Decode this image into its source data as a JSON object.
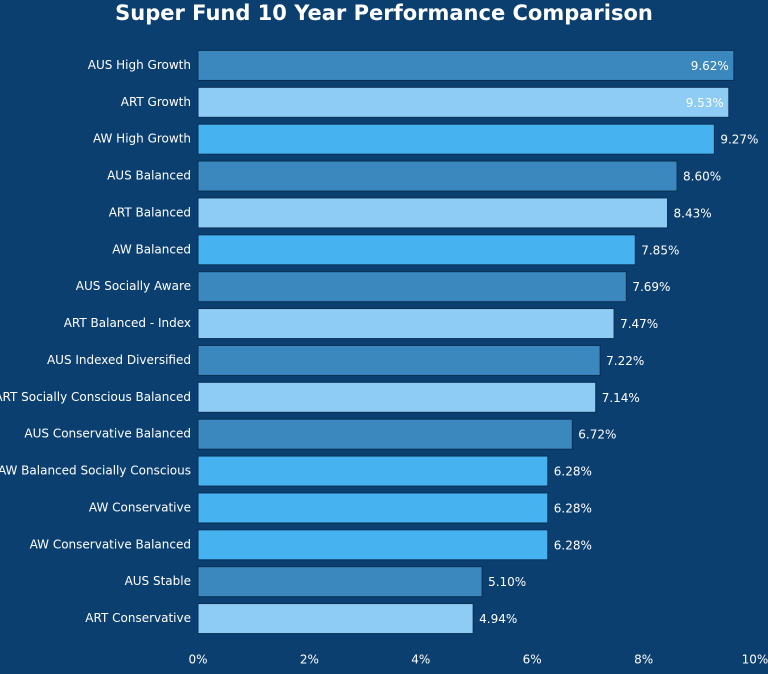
{
  "chart_data": {
    "type": "hbar",
    "title": "Super Fund 10 Year Performance Comparison",
    "categories": [
      "AUS High Growth",
      "ART Growth",
      "AW High Growth",
      "AUS Balanced",
      "ART Balanced",
      "AW Balanced",
      "AUS Socially Aware",
      "ART Balanced - Index",
      "AUS Indexed Diversified",
      "ART Socially Conscious Balanced",
      "AUS Conservative Balanced",
      "AW Balanced Socially Conscious",
      "AW Conservative",
      "AW Conservative Balanced",
      "AUS Stable",
      "ART Conservative"
    ],
    "values": [
      9.62,
      9.53,
      9.27,
      8.6,
      8.43,
      7.85,
      7.69,
      7.47,
      7.22,
      7.14,
      6.72,
      6.28,
      6.28,
      6.28,
      5.1,
      4.94
    ],
    "value_labels": [
      "9.62%",
      "9.53%",
      "9.27%",
      "8.60%",
      "8.43%",
      "7.85%",
      "7.69%",
      "7.47%",
      "7.22%",
      "7.14%",
      "6.72%",
      "6.28%",
      "6.28%",
      "6.28%",
      "5.10%",
      "4.94%"
    ],
    "colors": [
      "#3a88bd",
      "#8ecbf5",
      "#47b2f0",
      "#3a88bd",
      "#8ecbf5",
      "#47b2f0",
      "#3a88bd",
      "#8ecbf5",
      "#3a88bd",
      "#8ecbf5",
      "#3a88bd",
      "#47b2f0",
      "#47b2f0",
      "#47b2f0",
      "#3a88bd",
      "#8ecbf5"
    ],
    "xlim": [
      0,
      10
    ],
    "xticks": [
      {
        "value": 0,
        "label": "0%"
      },
      {
        "value": 2,
        "label": "2%"
      },
      {
        "value": 4,
        "label": "4%"
      },
      {
        "value": 6,
        "label": "6%"
      },
      {
        "value": 8,
        "label": "8%"
      },
      {
        "value": 10,
        "label": "10%"
      }
    ],
    "grid": false
  }
}
